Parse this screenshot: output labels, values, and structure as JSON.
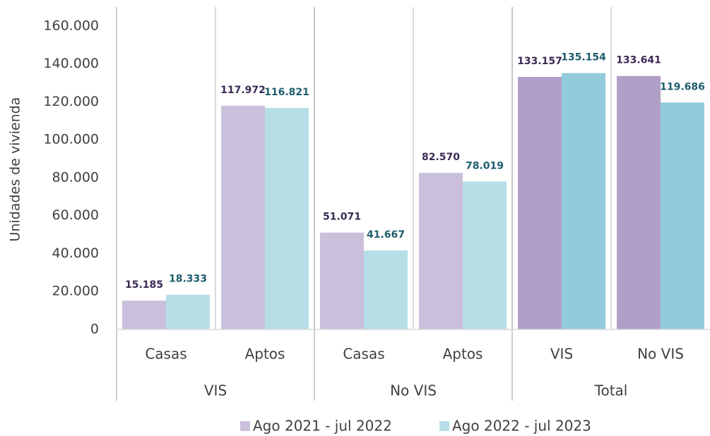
{
  "chart_data": {
    "type": "bar",
    "y_label": "Unidades de vivienda",
    "groups": [
      {
        "name": "VIS",
        "categories": [
          "Casas",
          "Aptos"
        ]
      },
      {
        "name": "No VIS",
        "categories": [
          "Casas",
          "Aptos"
        ]
      },
      {
        "name": "Total",
        "categories": [
          "VIS",
          "No VIS"
        ]
      }
    ],
    "series": [
      {
        "name": "Ago 2021 - jul 2022",
        "color": "#cbc0dc",
        "point_colors": [
          "#cbc0dc",
          "#cbc0dc",
          "#cbc0dc",
          "#cbc0dc",
          "#b19fc7",
          "#b19fc7"
        ],
        "label_color": "#3b2a55",
        "values": [
          15185,
          117972,
          51071,
          82570,
          133157,
          133641
        ],
        "value_labels": [
          "15.185",
          "117.972",
          "51.071",
          "82.570",
          "133.157",
          "133.641"
        ]
      },
      {
        "name": "Ago 2022 - jul 2023",
        "color": "#b6dee6",
        "point_colors": [
          "#b6dee6",
          "#b6dee6",
          "#b6dee6",
          "#b6dee6",
          "#94cbdc",
          "#94cbdc"
        ],
        "label_color": "#1d5d6c",
        "values": [
          18333,
          116821,
          41667,
          78019,
          135154,
          119686
        ],
        "value_labels": [
          "18.333",
          "116.821",
          "41.667",
          "78.019",
          "135.154",
          "119.686"
        ]
      }
    ],
    "ylim": [
      0,
      170000
    ],
    "yticks": [
      0,
      {
        "value": 20000,
        "label": "20.000"
      },
      {
        "value": 40000,
        "label": "40.000"
      },
      {
        "value": 60000,
        "label": "60.000"
      },
      {
        "value": 80000,
        "label": "80.000"
      },
      {
        "value": 100000,
        "label": "100.000"
      },
      {
        "value": 120000,
        "label": "120.000"
      },
      {
        "value": 140000,
        "label": "140.000"
      },
      {
        "value": 160000,
        "label": "160.000"
      }
    ],
    "legend": "bottom"
  }
}
